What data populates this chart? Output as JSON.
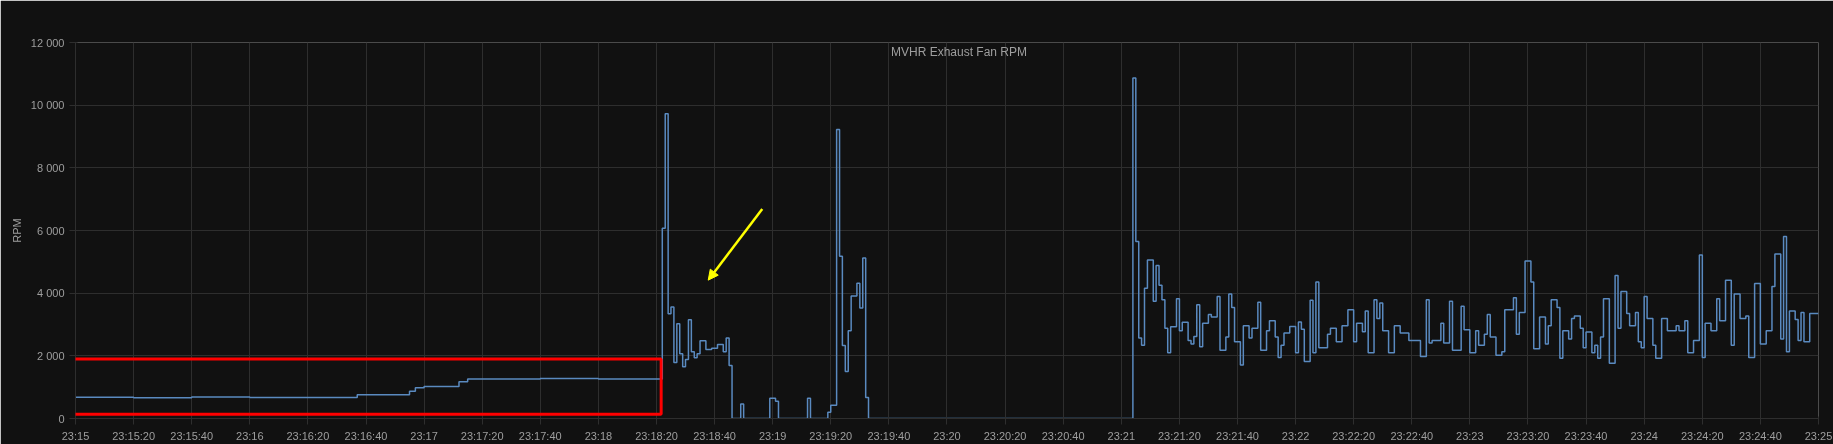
{
  "chart_data": {
    "type": "step",
    "ylabel": "RPM",
    "legend": "top",
    "grid": true,
    "marker": "none",
    "line_style": "solid",
    "xlim": [
      23.25,
      23.41667
    ],
    "ylim": [
      0,
      12000
    ],
    "xticks": [
      {
        "value": 23.25,
        "label": "23:15"
      },
      {
        "value": 23.25556,
        "label": "23:15:20"
      },
      {
        "value": 23.26111,
        "label": "23:15:40"
      },
      {
        "value": 23.26667,
        "label": "23:16"
      },
      {
        "value": 23.27222,
        "label": "23:16:20"
      },
      {
        "value": 23.27778,
        "label": "23:16:40"
      },
      {
        "value": 23.28333,
        "label": "23:17"
      },
      {
        "value": 23.28889,
        "label": "23:17:20"
      },
      {
        "value": 23.29444,
        "label": "23:17:40"
      },
      {
        "value": 23.3,
        "label": "23:18"
      },
      {
        "value": 23.30556,
        "label": "23:18:20"
      },
      {
        "value": 23.31111,
        "label": "23:18:40"
      },
      {
        "value": 23.31667,
        "label": "23:19"
      },
      {
        "value": 23.32222,
        "label": "23:19:20"
      },
      {
        "value": 23.32778,
        "label": "23:19:40"
      },
      {
        "value": 23.33333,
        "label": "23:20"
      },
      {
        "value": 23.33889,
        "label": "23:20:20"
      },
      {
        "value": 23.34444,
        "label": "23:20:40"
      },
      {
        "value": 23.35,
        "label": "23:21"
      },
      {
        "value": 23.35556,
        "label": "23:21:20"
      },
      {
        "value": 23.36111,
        "label": "23:21:40"
      },
      {
        "value": 23.36667,
        "label": "23:22"
      },
      {
        "value": 23.37222,
        "label": "23:22:20"
      },
      {
        "value": 23.37778,
        "label": "23:22:40"
      },
      {
        "value": 23.38333,
        "label": "23:23"
      },
      {
        "value": 23.38889,
        "label": "23:23:20"
      },
      {
        "value": 23.39444,
        "label": "23:23:40"
      },
      {
        "value": 23.4,
        "label": "23:24"
      },
      {
        "value": 23.40556,
        "label": "23:24:20"
      },
      {
        "value": 23.41111,
        "label": "23:24:40"
      },
      {
        "value": 23.41667,
        "label": "23:25"
      }
    ],
    "yticks": [
      0,
      {
        "value": 2000,
        "label": "2 000"
      },
      {
        "value": 4000,
        "label": "4 000"
      },
      {
        "value": 6000,
        "label": "6 000"
      },
      {
        "value": 8000,
        "label": "8 000"
      },
      {
        "value": 10000,
        "label": "10 000"
      },
      {
        "value": 12000,
        "label": "12 000"
      }
    ],
    "series": [
      {
        "name": "MVHR Exhaust Fan RPM",
        "color": "#5a8ac0",
        "x": [
          23.25,
          23.25556,
          23.26111,
          23.26667,
          23.27222,
          23.27694,
          23.28194,
          23.2825,
          23.28333,
          23.28667,
          23.2875,
          23.29444,
          23.3,
          23.30611,
          23.30639,
          23.30667,
          23.30694,
          23.30722,
          23.3075,
          23.30778,
          23.30806,
          23.30833,
          23.30861,
          23.30889,
          23.30917,
          23.30944,
          23.30972,
          23.31028,
          23.31083,
          23.31139,
          23.31194,
          23.31222,
          23.3125,
          23.31278,
          23.31361,
          23.31389,
          23.31639,
          23.31694,
          23.31722,
          23.32,
          23.32028,
          23.32194,
          23.32222,
          23.32278,
          23.32306,
          23.32333,
          23.32361,
          23.32389,
          23.32417,
          23.32472,
          23.325,
          23.32528,
          23.32556,
          23.32583,
          23.35111,
          23.35139,
          23.35167,
          23.35194,
          23.35222,
          23.3525,
          23.35306,
          23.35333,
          23.35361,
          23.35389,
          23.35417,
          23.35444,
          23.35472,
          23.35528,
          23.35556,
          23.35583,
          23.35639,
          23.35667,
          23.35694,
          23.35722,
          23.3575,
          23.35778,
          23.35833,
          23.35861,
          23.35917,
          23.35944,
          23.36,
          23.36028,
          23.36056,
          23.36083,
          23.36139,
          23.36167,
          23.36222,
          23.3625,
          23.36306,
          23.36333,
          23.36389,
          23.36417,
          23.36472,
          23.365,
          23.36528,
          23.36556,
          23.36611,
          23.36667,
          23.36694,
          23.36722,
          23.3675,
          23.36806,
          23.36833,
          23.36861,
          23.36889,
          23.36972,
          23.37,
          23.37056,
          23.37111,
          23.37167,
          23.37222,
          23.3725,
          23.37306,
          23.37333,
          23.37361,
          23.37417,
          23.37444,
          23.37472,
          23.375,
          23.37556,
          23.37611,
          23.37667,
          23.3775,
          23.37861,
          23.37917,
          23.37944,
          23.37972,
          23.38056,
          23.38083,
          23.38139,
          23.38167,
          23.3825,
          23.38278,
          23.38333,
          23.38389,
          23.38417,
          23.38472,
          23.385,
          23.38528,
          23.38583,
          23.38639,
          23.38667,
          23.3875,
          23.38778,
          23.38806,
          23.38861,
          23.38917,
          23.38944,
          23.39,
          23.39056,
          23.39083,
          23.39111,
          23.39167,
          23.39194,
          23.39222,
          23.39278,
          23.39306,
          23.39333,
          23.39389,
          23.39417,
          23.39444,
          23.395,
          23.39528,
          23.39556,
          23.39583,
          23.39611,
          23.39667,
          23.39722,
          23.3975,
          23.39778,
          23.39833,
          23.39861,
          23.39917,
          23.39944,
          23.39972,
          23.4,
          23.40028,
          23.40083,
          23.40111,
          23.40167,
          23.40222,
          23.40306,
          23.40333,
          23.40389,
          23.40417,
          23.40472,
          23.40528,
          23.40556,
          23.40583,
          23.40639,
          23.40694,
          23.40722,
          23.40778,
          23.40833,
          23.40861,
          23.40917,
          23.40972,
          23.41,
          23.41056,
          23.41111,
          23.41167,
          23.41222,
          23.4125,
          23.41306,
          23.41333,
          23.41361,
          23.41389,
          23.41444,
          23.41472,
          23.415,
          23.41528,
          23.41583,
          23.41667
        ],
        "values": [
          680,
          660,
          690,
          670,
          670,
          760,
          870,
          980,
          1020,
          1170,
          1260,
          1280,
          1260,
          6070,
          9730,
          3340,
          3560,
          1790,
          3020,
          2070,
          1650,
          1880,
          3150,
          2130,
          1940,
          2070,
          2480,
          2200,
          2240,
          2360,
          2130,
          2570,
          1690,
          0,
          460,
          0,
          650,
          550,
          0,
          650,
          0,
          200,
          420,
          9220,
          5180,
          2330,
          1500,
          2800,
          3910,
          4320,
          3530,
          5120,
          670,
          0,
          10870,
          5650,
          2570,
          2340,
          4160,
          5060,
          3740,
          4880,
          4250,
          3790,
          2880,
          2100,
          2930,
          3820,
          2800,
          3070,
          2490,
          2380,
          2620,
          3630,
          2290,
          3040,
          3320,
          3240,
          3890,
          2180,
          2600,
          3970,
          3540,
          2450,
          1710,
          2960,
          2570,
          2880,
          3710,
          2180,
          2800,
          3120,
          2600,
          1950,
          2340,
          2730,
          2940,
          2100,
          3080,
          2850,
          1820,
          3770,
          2100,
          4360,
          2260,
          2690,
          2880,
          2450,
          2960,
          3470,
          2450,
          3040,
          2770,
          3430,
          2100,
          3790,
          3190,
          3690,
          2800,
          2100,
          2960,
          2730,
          2490,
          1980,
          3790,
          2410,
          2490,
          3040,
          2410,
          3740,
          2180,
          3580,
          2830,
          2100,
          2800,
          2340,
          2690,
          3320,
          2600,
          2020,
          2130,
          3470,
          3850,
          2690,
          3380,
          5030,
          4360,
          2230,
          3240,
          2380,
          2960,
          3790,
          3540,
          1920,
          2800,
          2540,
          3190,
          3270,
          2880,
          2260,
          2760,
          2100,
          2340,
          1920,
          2600,
          3820,
          1760,
          4560,
          2880,
          4050,
          3350,
          2960,
          3380,
          2450,
          2260,
          3890,
          3190,
          2340,
          1920,
          3190,
          2800,
          2960,
          2800,
          3120,
          2100,
          2490,
          5220,
          1950,
          3040,
          2800,
          3820,
          3120,
          4410,
          2340,
          3970,
          3190,
          3270,
          1950,
          4310,
          2380,
          2800,
          4210,
          5250,
          2540,
          5810,
          2130,
          3430,
          3160,
          2490,
          3380,
          2450,
          3350,
          3350
        ]
      }
    ]
  }
}
